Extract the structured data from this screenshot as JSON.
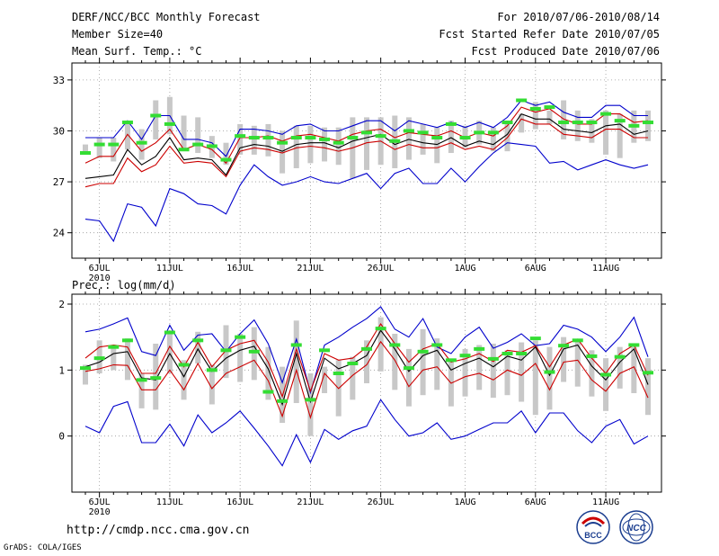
{
  "header": {
    "title": "DERF/NCC/BCC Monthly Forecast",
    "member_size": "Member Size=40",
    "variable": "Mean Surf. Temp.: °C",
    "period": "For 2010/07/06-2010/08/14",
    "started": "Fcst Started Refer Date 2010/07/05",
    "produced": "Fcst Produced Date 2010/07/06"
  },
  "footer": {
    "url": "http://cmdp.ncc.cma.gov.cn",
    "grads": "GrADS: COLA/IGES",
    "logo_bcc_text": "BCC",
    "logo_ncc_text": "NCC"
  },
  "colors": {
    "max_line": "#0000cc",
    "min_line": "#0000cc",
    "upper_line": "#cc0000",
    "lower_line": "#cc0000",
    "mean_line": "#000000",
    "spread_bar": "#c8c8c8",
    "marker": "#33dd33"
  },
  "chart_data": [
    {
      "type": "line",
      "title": "Mean Surf. Temp.: °C",
      "ylim": [
        22.5,
        34
      ],
      "yticks": [
        24,
        27,
        30,
        33
      ],
      "xtick_labels": [
        "6JUL",
        "11JUL",
        "16JUL",
        "21JUL",
        "26JUL",
        "1AUG",
        "6AUG",
        "11AUG"
      ],
      "xtick_days": [
        1,
        6,
        11,
        16,
        21,
        27,
        32,
        37
      ],
      "year_label": "2010",
      "days": 40,
      "series": [
        {
          "name": "max",
          "values": [
            29.6,
            29.6,
            29.6,
            30.6,
            29.5,
            30.9,
            30.9,
            29.5,
            29.5,
            29.3,
            28.5,
            30.1,
            30.1,
            30.0,
            29.8,
            30.3,
            30.4,
            30.0,
            30.0,
            30.3,
            30.6,
            30.6,
            30.0,
            30.6,
            30.4,
            30.2,
            30.5,
            30.2,
            30.5,
            30.2,
            30.8,
            31.8,
            31.5,
            31.7,
            31.1,
            30.8,
            30.8,
            31.5,
            31.5,
            30.9,
            30.9
          ]
        },
        {
          "name": "upper",
          "values": [
            28.1,
            28.5,
            28.5,
            29.8,
            28.8,
            29.3,
            30.1,
            28.9,
            29.2,
            28.9,
            28.1,
            29.6,
            29.6,
            29.7,
            29.4,
            29.7,
            29.8,
            29.6,
            29.4,
            29.8,
            30.0,
            30.1,
            29.6,
            29.9,
            29.8,
            29.7,
            30.0,
            29.6,
            29.9,
            29.7,
            30.3,
            31.4,
            31.1,
            31.3,
            30.7,
            30.4,
            30.4,
            31.0,
            31.0,
            30.5,
            30.6
          ]
        },
        {
          "name": "mean",
          "values": [
            27.2,
            27.3,
            27.4,
            28.9,
            28.0,
            28.5,
            29.6,
            28.3,
            28.4,
            28.3,
            27.4,
            29.0,
            29.2,
            29.1,
            28.8,
            29.2,
            29.3,
            29.3,
            29.0,
            29.4,
            29.6,
            29.8,
            29.2,
            29.5,
            29.3,
            29.2,
            29.6,
            29.1,
            29.4,
            29.2,
            29.8,
            31.0,
            30.7,
            30.7,
            30.1,
            30.0,
            29.9,
            30.3,
            30.4,
            29.8,
            30.0
          ]
        },
        {
          "name": "lower",
          "values": [
            26.7,
            26.9,
            26.9,
            28.4,
            27.6,
            28.0,
            29.1,
            28.1,
            28.2,
            28.1,
            27.3,
            28.8,
            29.0,
            28.9,
            28.7,
            29.0,
            29.1,
            29.0,
            28.8,
            29.0,
            29.3,
            29.4,
            28.9,
            29.2,
            29.0,
            29.0,
            29.3,
            28.9,
            29.1,
            28.9,
            29.6,
            30.7,
            30.4,
            30.4,
            29.8,
            29.7,
            29.6,
            30.1,
            30.1,
            29.6,
            29.6
          ]
        },
        {
          "name": "min",
          "values": [
            24.8,
            24.7,
            23.5,
            25.7,
            25.5,
            24.4,
            26.6,
            26.3,
            25.7,
            25.6,
            25.1,
            26.8,
            28.0,
            27.3,
            26.8,
            27.0,
            27.3,
            27.0,
            26.9,
            27.2,
            27.5,
            26.6,
            27.5,
            27.8,
            26.9,
            26.9,
            27.8,
            27.0,
            27.9,
            28.7,
            29.3,
            29.2,
            29.1,
            28.1,
            28.2,
            27.7,
            28.0,
            28.3,
            28.0,
            27.8,
            28.0
          ]
        },
        {
          "name": "spread_top",
          "values": [
            29.2,
            29.6,
            29.6,
            30.6,
            30.1,
            31.8,
            32.0,
            30.9,
            30.8,
            29.7,
            29.3,
            30.4,
            30.3,
            30.4,
            30.0,
            30.3,
            30.3,
            30.2,
            30.2,
            30.8,
            30.8,
            30.8,
            30.9,
            30.8,
            30.4,
            30.2,
            30.6,
            30.3,
            30.6,
            30.2,
            30.6,
            31.0,
            31.7,
            31.2,
            31.8,
            31.2,
            30.7,
            31.2,
            31.0,
            31.2,
            31.2
          ]
        },
        {
          "name": "spread_bottom",
          "values": [
            28.6,
            28.4,
            28.2,
            28.9,
            28.3,
            29.5,
            29.8,
            28.9,
            28.7,
            28.4,
            28.0,
            28.6,
            28.6,
            28.5,
            27.5,
            27.8,
            28.1,
            28.2,
            28.0,
            27.2,
            27.7,
            28.0,
            27.8,
            28.3,
            28.6,
            28.1,
            28.7,
            29.0,
            29.2,
            28.8,
            28.8,
            29.9,
            30.1,
            30.4,
            29.5,
            29.4,
            29.3,
            28.6,
            28.4,
            29.3,
            29.4
          ]
        },
        {
          "name": "markers",
          "values": [
            28.7,
            29.2,
            29.2,
            30.5,
            29.3,
            30.9,
            30.4,
            28.9,
            29.2,
            29.1,
            28.3,
            29.7,
            29.6,
            29.6,
            29.3,
            29.6,
            29.6,
            29.5,
            29.3,
            29.6,
            29.9,
            29.7,
            29.4,
            30.0,
            29.9,
            29.6,
            30.4,
            29.6,
            29.9,
            29.9,
            30.5,
            31.8,
            31.3,
            31.4,
            30.5,
            30.5,
            30.5,
            31.0,
            30.6,
            30.3,
            30.5
          ]
        }
      ]
    },
    {
      "type": "line",
      "title": "Prec.: log(mm/d)",
      "ylim": [
        -0.85,
        2.15
      ],
      "yticks": [
        0,
        1,
        2
      ],
      "xtick_labels": [
        "6JUL",
        "11JUL",
        "16JUL",
        "21JUL",
        "26JUL",
        "1AUG",
        "6AUG",
        "11AUG"
      ],
      "xtick_days": [
        1,
        6,
        11,
        16,
        21,
        27,
        32,
        37
      ],
      "year_label": "2010",
      "days": 40,
      "series": [
        {
          "name": "max",
          "values": [
            1.58,
            1.62,
            1.7,
            1.79,
            1.28,
            1.22,
            1.68,
            1.3,
            1.53,
            1.55,
            1.28,
            1.55,
            1.76,
            1.4,
            0.81,
            1.47,
            0.66,
            1.38,
            1.5,
            1.65,
            1.78,
            1.96,
            1.62,
            1.5,
            1.78,
            1.35,
            1.25,
            1.5,
            1.65,
            1.33,
            1.42,
            1.55,
            1.37,
            1.4,
            1.68,
            1.62,
            1.5,
            1.28,
            1.5,
            1.8,
            1.2
          ]
        },
        {
          "name": "upper",
          "values": [
            1.18,
            1.35,
            1.38,
            1.35,
            0.95,
            0.95,
            1.36,
            1.05,
            1.42,
            1.05,
            1.3,
            1.4,
            1.45,
            1.12,
            0.6,
            1.32,
            0.68,
            1.25,
            1.15,
            1.18,
            1.35,
            1.7,
            1.4,
            1.12,
            1.32,
            1.4,
            1.12,
            1.17,
            1.25,
            1.13,
            1.3,
            1.27,
            1.37,
            1.05,
            1.38,
            1.47,
            1.18,
            0.95,
            1.25,
            1.38,
            0.92
          ]
        },
        {
          "name": "mean",
          "values": [
            1.05,
            1.12,
            1.25,
            1.28,
            0.88,
            0.85,
            1.25,
            0.9,
            1.32,
            0.98,
            1.18,
            1.3,
            1.36,
            1.02,
            0.48,
            1.25,
            0.52,
            1.18,
            1.02,
            1.1,
            1.22,
            1.6,
            1.32,
            0.98,
            1.22,
            1.3,
            1.0,
            1.1,
            1.18,
            1.05,
            1.21,
            1.15,
            1.35,
            0.92,
            1.32,
            1.38,
            1.06,
            0.85,
            1.12,
            1.32,
            0.78
          ]
        },
        {
          "name": "lower",
          "values": [
            0.98,
            1.02,
            1.08,
            1.07,
            0.7,
            0.7,
            1.0,
            0.7,
            1.1,
            0.72,
            0.95,
            1.05,
            1.15,
            0.84,
            0.3,
            1.0,
            0.28,
            0.95,
            0.72,
            0.92,
            1.08,
            1.43,
            1.15,
            0.75,
            1.0,
            1.05,
            0.8,
            0.9,
            0.95,
            0.85,
            1.0,
            0.92,
            1.1,
            0.7,
            1.12,
            1.15,
            0.85,
            0.68,
            0.95,
            1.05,
            0.58
          ]
        },
        {
          "name": "min",
          "values": [
            0.15,
            0.05,
            0.45,
            0.52,
            -0.1,
            -0.1,
            0.18,
            -0.15,
            0.32,
            0.05,
            0.2,
            0.38,
            0.12,
            -0.15,
            -0.45,
            0.02,
            -0.4,
            0.1,
            -0.05,
            0.08,
            0.15,
            0.55,
            0.25,
            0.0,
            0.05,
            0.2,
            -0.05,
            0.0,
            0.1,
            0.2,
            0.2,
            0.38,
            0.05,
            0.35,
            0.35,
            0.08,
            -0.1,
            0.15,
            0.25,
            -0.12,
            0.0
          ]
        },
        {
          "name": "spread_top",
          "values": [
            1.08,
            1.45,
            1.35,
            1.48,
            0.95,
            1.4,
            1.6,
            1.15,
            1.58,
            1.08,
            1.68,
            1.55,
            1.65,
            1.35,
            1.05,
            1.75,
            0.95,
            1.05,
            1.15,
            1.2,
            1.45,
            1.8,
            1.55,
            1.32,
            1.62,
            1.48,
            1.15,
            1.32,
            1.38,
            1.4,
            1.3,
            1.42,
            1.45,
            1.35,
            1.5,
            1.45,
            1.3,
            1.18,
            1.35,
            1.35,
            1.18
          ]
        },
        {
          "name": "spread_bottom",
          "values": [
            0.78,
            0.95,
            1.0,
            0.85,
            0.42,
            0.4,
            0.95,
            0.55,
            1.1,
            0.48,
            0.88,
            0.82,
            0.85,
            0.55,
            0.2,
            0.5,
            0.0,
            0.65,
            0.3,
            0.55,
            0.8,
            0.98,
            0.7,
            0.45,
            0.62,
            0.7,
            0.45,
            0.6,
            0.7,
            0.58,
            0.62,
            0.52,
            0.32,
            0.4,
            0.82,
            0.75,
            0.6,
            0.38,
            0.72,
            0.65,
            0.32
          ]
        },
        {
          "name": "markers",
          "values": [
            1.03,
            1.18,
            1.35,
            1.45,
            0.85,
            0.88,
            1.57,
            1.08,
            1.45,
            1.0,
            1.3,
            1.5,
            1.28,
            0.67,
            0.53,
            1.38,
            0.55,
            1.3,
            0.95,
            1.1,
            1.32,
            1.63,
            1.38,
            1.03,
            1.28,
            1.38,
            1.15,
            1.22,
            1.32,
            1.17,
            1.25,
            1.25,
            1.48,
            0.97,
            1.37,
            1.45,
            1.21,
            0.93,
            1.2,
            1.38,
            0.96
          ]
        }
      ]
    }
  ]
}
